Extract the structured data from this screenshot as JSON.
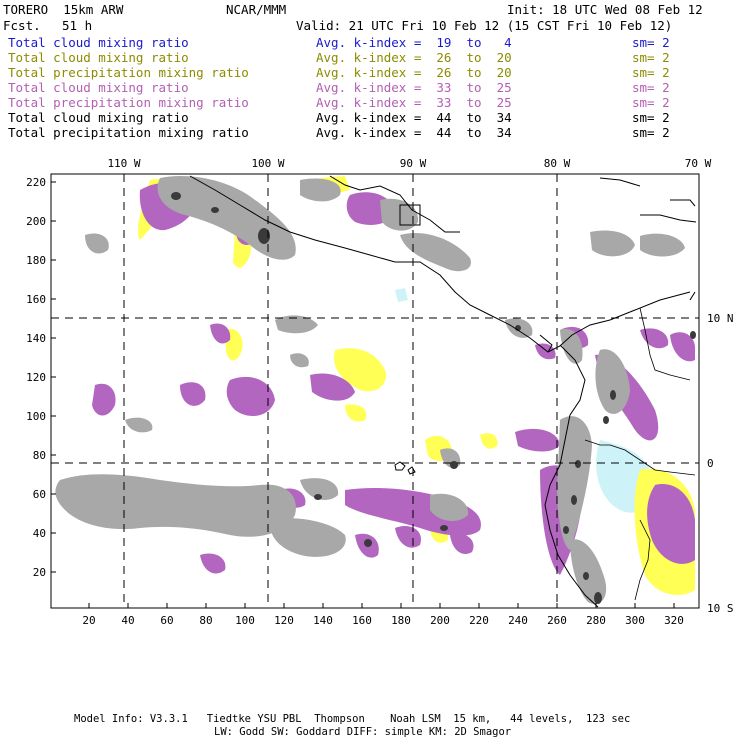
{
  "header": {
    "model": "TORERO  15km ARW",
    "org": "NCAR/MMM",
    "init": "Init: 18 UTC Wed 08 Feb 12",
    "fcst_label": "Fcst.",
    "fcst_value": "51 h",
    "valid": "Valid: 21 UTC Fri 10 Feb 12 (15 CST Fri 10 Feb 12)"
  },
  "legend_rows": [
    {
      "field": "Total cloud mixing ratio",
      "kindex": "Avg. k-index =  19  to   4",
      "sm": "sm= 2",
      "color": "#1a1acc"
    },
    {
      "field": "Total cloud mixing ratio",
      "kindex": "Avg. k-index =  26  to  20",
      "sm": "sm= 2",
      "color": "#8c8c00"
    },
    {
      "field": "Total precipitation mixing ratio",
      "kindex": "Avg. k-index =  26  to  20",
      "sm": "sm= 2",
      "color": "#8c8c00"
    },
    {
      "field": "Total cloud mixing ratio",
      "kindex": "Avg. k-index =  33  to  25",
      "sm": "sm= 2",
      "color": "#b35fb3"
    },
    {
      "field": "Total precipitation mixing ratio",
      "kindex": "Avg. k-index =  33  to  25",
      "sm": "sm= 2",
      "color": "#b35fb3"
    },
    {
      "field": "Total cloud mixing ratio",
      "kindex": "Avg. k-index =  44  to  34",
      "sm": "sm= 2",
      "color": "#000000"
    },
    {
      "field": "Total precipitation mixing ratio",
      "kindex": "Avg. k-index =  44  to  34",
      "sm": "sm= 2",
      "color": "#000000"
    }
  ],
  "lon_labels": [
    "110 W",
    "100 W",
    "90 W",
    "80 W",
    "70 W"
  ],
  "lat_labels": [
    "10 N",
    "0",
    "10 S"
  ],
  "y_ticks": [
    "220",
    "200",
    "180",
    "160",
    "140",
    "120",
    "100",
    "80",
    "60",
    "40",
    "20"
  ],
  "x_ticks": [
    "20",
    "40",
    "60",
    "80",
    "100",
    "120",
    "140",
    "160",
    "180",
    "200",
    "220",
    "240",
    "260",
    "280",
    "300",
    "320"
  ],
  "colors": {
    "gray_cloud": "#a8a8a8",
    "dark_cloud": "#3a3a3a",
    "magenta": "#b266c0",
    "yellow": "#ffff55",
    "cyan": "#cdf2f7"
  },
  "footer": {
    "line1": "Model Info: V3.3.1   Tiedtke YSU PBL  Thompson    Noah LSM  15 km,   44 levels,  123 sec",
    "line2": "LW: Godd SW: Goddard DIFF: simple KM: 2D Smagor"
  }
}
